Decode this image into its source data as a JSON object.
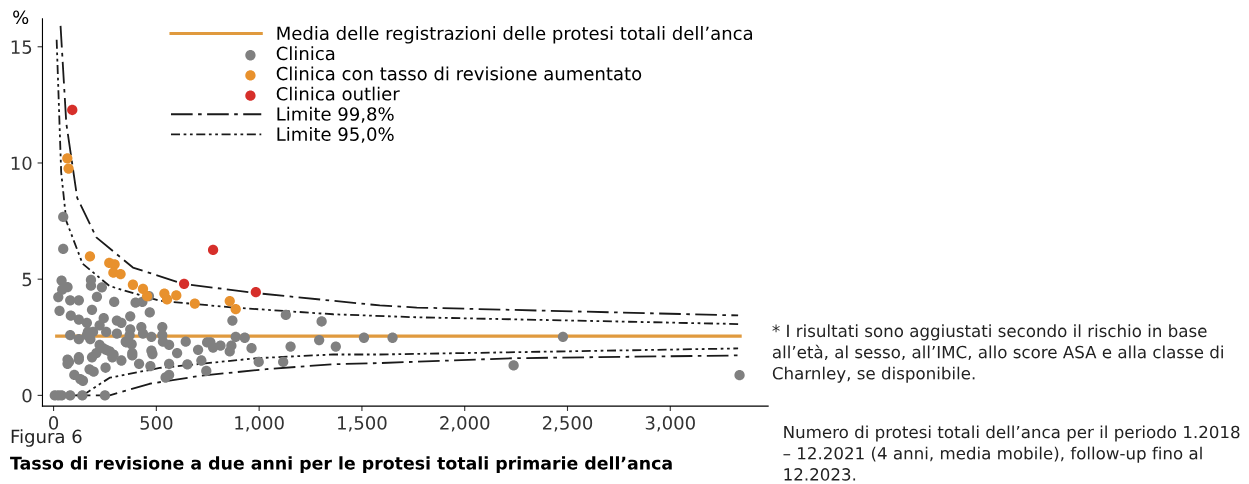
{
  "chart_data": {
    "type": "scatter",
    "title": "Tasso di revisione a due anni per le protesi totali primarie dell’anca",
    "xlabel": "Numero di protesi totali dell’anca per il periodo 1.2018 – 12.2021 (4 anni, media mobile), follow-up fino al 12.2023.",
    "ylabel": "%",
    "annotations": [
      "Figura 6",
      "* I risultati sono aggiustati secondo il rischio in base all’età, al sesso, all’IMC, allo score ASA e alla classe di Charnley, se disponibile."
    ],
    "xlim": [
      -54,
      3476
    ],
    "ylim": [
      -0.46,
      16.2
    ],
    "xticks": [
      0,
      500,
      {
        "value": 1000,
        "label": "1,000"
      },
      {
        "value": 1500,
        "label": "1,500"
      },
      {
        "value": 2000,
        "label": "2,000"
      },
      {
        "value": 2500,
        "label": "2,500"
      },
      {
        "value": 3000,
        "label": "3,000"
      }
    ],
    "yticks": [
      0,
      5,
      10,
      15
    ],
    "grid": false,
    "legend": "top right",
    "marker": "circle",
    "series": [
      {
        "name": "Media delle registrazioni delle protesi totali dell’anca",
        "type": "line",
        "color": "#e09a3e",
        "line_style": "solid",
        "marker": "none",
        "x": [
          15,
          3340
        ],
        "values": [
          2.55,
          2.55
        ]
      },
      {
        "name": "Clinica",
        "color": "#808080",
        "x": [
          47,
          47,
          39,
          23,
          29,
          42,
          68,
          81,
          123,
          84,
          81,
          123,
          123,
          162,
          167,
          182,
          182,
          187,
          179,
          192,
          211,
          235,
          224,
          244,
          256,
          295,
          308,
          308,
          330,
          373,
          373,
          351,
          380,
          399,
          432,
          427,
          435,
          468,
          464,
          476,
          529,
          529,
          532,
          562,
          476,
          481,
          383,
          383,
          416,
          471,
          562,
          562,
          545,
          601,
          643,
          651,
          703,
          719,
          743,
          747,
          763,
          776,
          812,
          857,
          865,
          870,
          886,
          930,
          963,
          998,
          1117,
          1130,
          1153,
          1292,
          1304,
          1373,
          1510,
          1649,
          68,
          68,
          75,
          123,
          123,
          101,
          130,
          143,
          175,
          195,
          187,
          208,
          224,
          240,
          256,
          273,
          292,
          286,
          253,
          330,
          354,
          370,
          162,
          6,
          23,
          39,
          81,
          140,
          250,
          2478,
          2238,
          3337
        ],
        "values": [
          7.68,
          6.3,
          4.94,
          4.23,
          3.64,
          4.55,
          4.66,
          4.09,
          4.09,
          3.43,
          2.59,
          3.26,
          2.42,
          3.12,
          2.73,
          4.97,
          4.72,
          3.68,
          2.42,
          2.73,
          4.24,
          4.65,
          3.01,
          3.32,
          2.73,
          4.02,
          3.22,
          2.66,
          3.12,
          3.4,
          2.84,
          2.31,
          2.2,
          3.99,
          4.02,
          2.94,
          2.66,
          3.57,
          4.27,
          2.52,
          2.94,
          2.59,
          2.31,
          2.17,
          1.92,
          1.78,
          1.82,
          1.72,
          1.36,
          1.26,
          1.36,
          0.88,
          0.77,
          1.82,
          2.31,
          1.33,
          1.96,
          1.5,
          1.05,
          2.28,
          2.28,
          2.06,
          2.14,
          1.89,
          2.14,
          3.22,
          2.52,
          2.48,
          2.03,
          1.44,
          1.44,
          3.46,
          2.1,
          2.38,
          3.18,
          2.1,
          2.48,
          2.48,
          1.54,
          1.36,
          1.44,
          1.64,
          1.54,
          0.88,
          0.7,
          0.63,
          1.12,
          1.02,
          1.64,
          1.82,
          2.17,
          2.03,
          1.96,
          1.89,
          1.75,
          1.64,
          1.19,
          1.5,
          2.28,
          2.59,
          2.59,
          0,
          0,
          0,
          0,
          0,
          0,
          2.52,
          1.29,
          0.87
        ]
      },
      {
        "name": "Clinica con tasso di revisione aumentato",
        "color": "#e8912d",
        "x": [
          67,
          73,
          177,
          271,
          297,
          291,
          326,
          386,
          435,
          455,
          539,
          552,
          597,
          687,
          857,
          886
        ],
        "values": [
          10.2,
          9.76,
          5.98,
          5.7,
          5.64,
          5.28,
          5.22,
          4.76,
          4.58,
          4.27,
          4.38,
          4.13,
          4.3,
          3.95,
          4.06,
          3.71
        ]
      },
      {
        "name": "Clinica outlier",
        "color": "#d62f2a",
        "x": [
          91,
          776,
          635,
          984
        ],
        "values": [
          12.28,
          6.26,
          4.8,
          4.44
        ]
      },
      {
        "name": "Limite 99,8%",
        "type": "line",
        "color": "#1a1a1a",
        "line_style": "dashdot",
        "marker": "none",
        "x": [
          34,
          62,
          115,
          208,
          386,
          630,
          987,
          1360,
          1587,
          1767,
          3330,
          null,
          30,
          273,
          467,
          711,
          1036,
          1360,
          1587,
          2235,
          3330
        ],
        "values": [
          15.9,
          11.7,
          8.5,
          6.8,
          5.5,
          4.8,
          4.4,
          4.07,
          3.87,
          3.78,
          3.44,
          null,
          0,
          0,
          0.5,
          0.84,
          1.13,
          1.34,
          1.39,
          1.6,
          1.72
        ]
      },
      {
        "name": "Limite 95,0%",
        "type": "line",
        "color": "#1a1a1a",
        "line_style": "dashdotdot",
        "marker": "none",
        "x": [
          15,
          37,
          62,
          141,
          273,
          516,
          873,
          1360,
          1767,
          3330,
          null,
          20,
          141,
          273,
          516,
          987,
          1360,
          1587,
          3330
        ],
        "values": [
          15.3,
          9.6,
          7.5,
          5.67,
          4.7,
          4.07,
          3.78,
          3.49,
          3.36,
          3.07,
          null,
          0,
          0,
          0.76,
          1.18,
          1.6,
          1.76,
          1.76,
          2.02
        ]
      }
    ]
  }
}
